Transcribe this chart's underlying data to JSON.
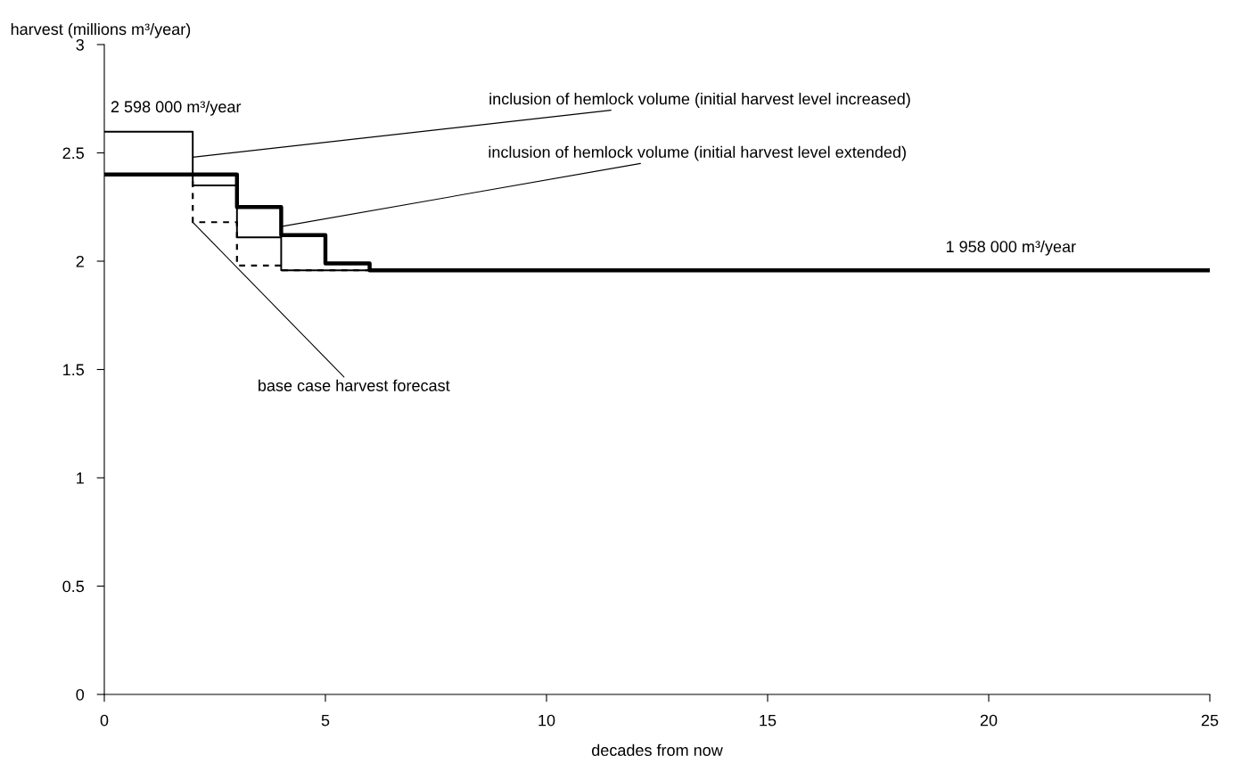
{
  "chart_data": {
    "type": "step",
    "xlabel": "decades from now",
    "ylabel": "harvest (millions m³/year)",
    "xlim": [
      0,
      25
    ],
    "xticks": [
      0,
      5,
      10,
      15,
      20,
      25
    ],
    "ylim": [
      0,
      3
    ],
    "yticks": [
      0,
      0.5,
      1,
      1.5,
      2,
      2.5,
      3
    ],
    "grid": false,
    "legend": false,
    "series": [
      {
        "color": "#000000",
        "line_style": "dashed",
        "x": [
          0,
          2,
          3,
          4,
          25
        ],
        "values": [
          2.4,
          2.18,
          1.98,
          1.958,
          1.958
        ]
      },
      {
        "color": "#000000",
        "line_style": "solid",
        "x": [
          0,
          2,
          3,
          4,
          25
        ],
        "values": [
          2.598,
          2.35,
          2.11,
          1.958,
          1.958
        ]
      },
      {
        "color": "#000000",
        "line_style": "solid",
        "x": [
          0,
          3,
          4,
          5,
          6,
          25
        ],
        "values": [
          2.4,
          2.25,
          2.12,
          1.99,
          1.958,
          1.958
        ]
      }
    ],
    "annotations": [
      {
        "text": "2 598 000 m³/year",
        "x": 0,
        "y": 2.598
      },
      {
        "text": "inclusion of hemlock volume (initial harvest level increased)",
        "x": 2,
        "y": 2.48
      },
      {
        "text": "inclusion of hemlock volume (initial harvest level extended)",
        "x": 4,
        "y": 2.16
      },
      {
        "text": "base case harvest forecast",
        "x": 2,
        "y": 2.18
      },
      {
        "text": "1 958 000 m³/year",
        "x": 20.5,
        "y": 1.958
      }
    ]
  }
}
